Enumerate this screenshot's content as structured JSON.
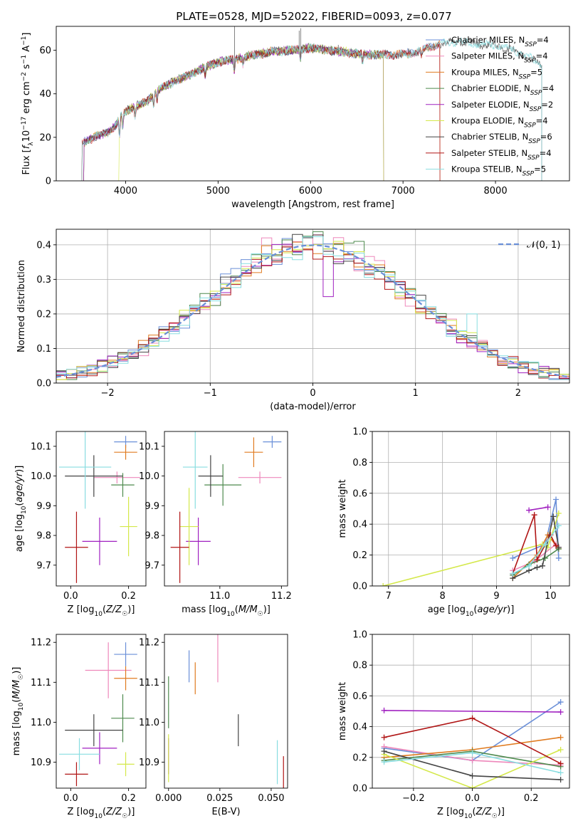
{
  "figure": {
    "title": "PLATE=0528, MJD=52022, FIBERID=0093, z=0.077"
  },
  "colors": {
    "Chabrier MILES": "#6a8fd8",
    "Salpeter MILES": "#ee88bb",
    "Kroupa MILES": "#e07b20",
    "Chabrier ELODIE": "#4e8a4e",
    "Salpeter ELODIE": "#a020c0",
    "Kroupa ELODIE": "#d4e84a",
    "Chabrier STELIB": "#444444",
    "Salpeter STELIB": "#b01515",
    "Kroupa STELIB": "#88dde0"
  },
  "chart_data": [
    {
      "id": "spectrum",
      "type": "line",
      "title": "PLATE=0528, MJD=52022, FIBERID=0093, z=0.077",
      "xlabel": "wavelength [Angstrom, rest frame]",
      "ylabel": "Flux [f_λ 10^-17 erg cm^-2 s^-1 A^-1]",
      "xlim": [
        3250,
        8800
      ],
      "ylim": [
        0,
        71
      ],
      "xticks": [
        4000,
        5000,
        6000,
        7000,
        8000
      ],
      "yticks": [
        0,
        20,
        40,
        60
      ],
      "legend_position": "top-right",
      "series": [
        {
          "name": "Chabrier MILES, N_SSP=4"
        },
        {
          "name": "Salpeter MILES, N_SSP=4"
        },
        {
          "name": "Kroupa MILES, N_SSP=5"
        },
        {
          "name": "Chabrier ELODIE, N_SSP=4"
        },
        {
          "name": "Salpeter ELODIE, N_SSP=2"
        },
        {
          "name": "Kroupa ELODIE, N_SSP=4"
        },
        {
          "name": "Chabrier STELIB, N_SSP=6"
        },
        {
          "name": "Salpeter STELIB, N_SSP=4"
        },
        {
          "name": "Kroupa STELIB, N_SSP=5"
        }
      ],
      "continuum": [
        [
          3520,
          17
        ],
        [
          3650,
          20
        ],
        [
          3800,
          22
        ],
        [
          3900,
          26
        ],
        [
          3960,
          31
        ],
        [
          4050,
          33
        ],
        [
          4150,
          35
        ],
        [
          4250,
          37
        ],
        [
          4350,
          42
        ],
        [
          4500,
          45
        ],
        [
          4700,
          49
        ],
        [
          4900,
          53
        ],
        [
          5050,
          55
        ],
        [
          5200,
          56
        ],
        [
          5400,
          58
        ],
        [
          5600,
          59.5
        ],
        [
          5800,
          60
        ],
        [
          6000,
          61
        ],
        [
          6200,
          60
        ],
        [
          6400,
          59
        ],
        [
          6600,
          58
        ],
        [
          6800,
          58
        ],
        [
          7000,
          58
        ],
        [
          7200,
          60
        ],
        [
          7400,
          63
        ],
        [
          7600,
          64
        ],
        [
          7800,
          63
        ],
        [
          8000,
          62
        ],
        [
          8200,
          60
        ],
        [
          8400,
          56
        ],
        [
          8500,
          53
        ]
      ],
      "ranges": {
        "Chabrier MILES": [
          3540,
          7400
        ],
        "Salpeter MILES": [
          3540,
          7400
        ],
        "Kroupa MILES": [
          3540,
          7400
        ],
        "Chabrier ELODIE": [
          3540,
          6790
        ],
        "Salpeter ELODIE": [
          3540,
          6790
        ],
        "Kroupa ELODIE": [
          3920,
          6790
        ],
        "Chabrier STELIB": [
          3520,
          8500
        ],
        "Salpeter STELIB": [
          3520,
          7400
        ],
        "Kroupa STELIB": [
          3520,
          8500
        ]
      },
      "absorption": [
        [
          3934,
          8
        ],
        [
          3969,
          7
        ],
        [
          4102,
          4
        ],
        [
          4304,
          6
        ],
        [
          4341,
          4
        ],
        [
          4861,
          4
        ],
        [
          5175,
          6
        ],
        [
          5270,
          3
        ],
        [
          5890,
          5
        ],
        [
          6563,
          4
        ],
        [
          7200,
          3
        ]
      ],
      "emission": [
        [
          5178,
          23
        ],
        [
          5877,
          9
        ],
        [
          5893,
          14
        ],
        [
          6300,
          3
        ],
        [
          8150,
          6
        ]
      ]
    },
    {
      "id": "residuals",
      "type": "histogram",
      "xlabel": "(data-model)/error",
      "ylabel": "Normed distribution",
      "xlim": [
        -2.5,
        2.5
      ],
      "ylim": [
        0,
        0.445
      ],
      "xticks": [
        -2,
        -1,
        0,
        1,
        2
      ],
      "yticks": [
        0.0,
        0.1,
        0.2,
        0.3,
        0.4
      ],
      "legend_position": "top-right",
      "reference": {
        "name": "𝒩(0, 1)",
        "mean": 0,
        "sigma": 1
      },
      "bin_width": 0.1,
      "bin_start": -2.5,
      "bumps": [
        {
          "series": "Salpeter MILES",
          "x": -0.45,
          "y": 0.42
        },
        {
          "series": "Chabrier ELODIE",
          "x": -0.05,
          "y": 0.425
        },
        {
          "series": "Chabrier ELODIE",
          "x": 0.45,
          "y": 0.41
        },
        {
          "series": "Kroupa STELIB",
          "x": 1.55,
          "y": 0.2
        },
        {
          "series": "Salpeter ELODIE",
          "x": 0.15,
          "y": 0.25
        }
      ]
    },
    {
      "id": "z-vs-age",
      "type": "scatter",
      "xlabel": "Z [log10(Z/Z☉)]",
      "ylabel": "age [log10(age/yr)]",
      "xlim": [
        -0.05,
        0.26
      ],
      "ylim": [
        9.63,
        10.15
      ],
      "xticks": [
        0.0,
        0.2
      ],
      "yticks": [
        9.7,
        9.8,
        9.9,
        10.0,
        10.1
      ],
      "points": [
        {
          "series": "Chabrier MILES",
          "x": 0.19,
          "y": 10.115,
          "xerr": 0.04,
          "yerr": 0.02
        },
        {
          "series": "Salpeter MILES",
          "x": 0.16,
          "y": 9.995,
          "xerr": 0.08,
          "yerr": 0.02
        },
        {
          "series": "Kroupa MILES",
          "x": 0.19,
          "y": 10.08,
          "xerr": 0.04,
          "yerr": 0.025
        },
        {
          "series": "Chabrier ELODIE",
          "x": 0.18,
          "y": 9.97,
          "xerr": 0.04,
          "yerr": 0.04
        },
        {
          "series": "Salpeter ELODIE",
          "x": 0.1,
          "y": 9.78,
          "xerr": 0.06,
          "yerr": 0.08
        },
        {
          "series": "Kroupa ELODIE",
          "x": 0.2,
          "y": 9.83,
          "xerr": 0.03,
          "yerr": 0.1
        },
        {
          "series": "Chabrier STELIB",
          "x": 0.08,
          "y": 10.0,
          "xerr": 0.1,
          "yerr": 0.07
        },
        {
          "series": "Salpeter STELIB",
          "x": 0.02,
          "y": 9.76,
          "xerr": 0.04,
          "yerr": 0.12
        },
        {
          "series": "Kroupa STELIB",
          "x": 0.05,
          "y": 10.03,
          "xerr": 0.09,
          "yerr": 0.14
        }
      ]
    },
    {
      "id": "mass-vs-age",
      "type": "scatter",
      "xlabel": "mass [log10(M/M☉)]",
      "ylabel": "",
      "xlim": [
        10.82,
        11.22
      ],
      "ylim": [
        9.63,
        10.15
      ],
      "xticks": [
        10.8,
        11.0,
        11.2
      ],
      "yticks": [
        9.7,
        9.8,
        9.9,
        10.0,
        10.1
      ],
      "points": [
        {
          "series": "Chabrier MILES",
          "x": 11.17,
          "y": 10.115,
          "xerr": 0.03,
          "yerr": 0.02
        },
        {
          "series": "Salpeter MILES",
          "x": 11.13,
          "y": 9.995,
          "xerr": 0.07,
          "yerr": 0.02
        },
        {
          "series": "Kroupa MILES",
          "x": 11.11,
          "y": 10.08,
          "xerr": 0.03,
          "yerr": 0.05
        },
        {
          "series": "Chabrier ELODIE",
          "x": 11.01,
          "y": 9.97,
          "xerr": 0.06,
          "yerr": 0.07
        },
        {
          "series": "Salpeter ELODIE",
          "x": 10.93,
          "y": 9.78,
          "xerr": 0.04,
          "yerr": 0.08
        },
        {
          "series": "Kroupa ELODIE",
          "x": 10.9,
          "y": 9.83,
          "xerr": 0.03,
          "yerr": 0.13
        },
        {
          "series": "Chabrier STELIB",
          "x": 10.97,
          "y": 10.0,
          "xerr": 0.04,
          "yerr": 0.07
        },
        {
          "series": "Salpeter STELIB",
          "x": 10.87,
          "y": 9.76,
          "xerr": 0.03,
          "yerr": 0.12
        },
        {
          "series": "Kroupa STELIB",
          "x": 10.92,
          "y": 10.03,
          "xerr": 0.04,
          "yerr": 0.14
        }
      ]
    },
    {
      "id": "age-vs-mass-weight",
      "type": "line",
      "xlabel": "age [log10(age/yr)]",
      "ylabel": "mass weight",
      "xlim": [
        6.7,
        10.35
      ],
      "ylim": [
        0,
        1.0
      ],
      "xticks": [
        7,
        8,
        9,
        10
      ],
      "yticks": [
        0.0,
        0.2,
        0.4,
        0.6,
        0.8,
        1.0
      ],
      "grid": true,
      "series": [
        {
          "series": "Chabrier MILES",
          "x": [
            9.3,
            9.9,
            10.1,
            10.15
          ],
          "y": [
            0.18,
            0.27,
            0.56,
            0.18
          ]
        },
        {
          "series": "Salpeter MILES",
          "x": [
            9.3,
            9.7,
            10.1,
            10.15
          ],
          "y": [
            0.1,
            0.16,
            0.27,
            0.25
          ]
        },
        {
          "series": "Kroupa MILES",
          "x": [
            9.3,
            9.75,
            9.95,
            10.15
          ],
          "y": [
            0.05,
            0.2,
            0.33,
            0.24
          ]
        },
        {
          "series": "Chabrier ELODIE",
          "x": [
            9.3,
            9.6,
            9.9,
            10.15
          ],
          "y": [
            0.07,
            0.14,
            0.18,
            0.24
          ]
        },
        {
          "series": "Salpeter ELODIE",
          "x": [
            9.6,
            9.95
          ],
          "y": [
            0.49,
            0.51
          ]
        },
        {
          "series": "Kroupa ELODIE",
          "x": [
            6.9,
            9.85,
            9.95,
            10.15
          ],
          "y": [
            0.0,
            0.27,
            0.25,
            0.47
          ]
        },
        {
          "series": "Chabrier STELIB",
          "x": [
            9.3,
            9.6,
            9.75,
            9.85,
            10.05,
            10.15
          ],
          "y": [
            0.05,
            0.1,
            0.12,
            0.13,
            0.45,
            0.25
          ]
        },
        {
          "series": "Salpeter STELIB",
          "x": [
            9.3,
            9.7,
            9.75,
            10.0,
            10.1
          ],
          "y": [
            0.08,
            0.46,
            0.17,
            0.33,
            0.26
          ]
        },
        {
          "series": "Kroupa STELIB",
          "x": [
            9.3,
            9.6,
            9.9,
            10.15
          ],
          "y": [
            0.08,
            0.13,
            0.27,
            0.39
          ]
        }
      ]
    },
    {
      "id": "z-vs-mass",
      "type": "scatter",
      "xlabel": "Z [log10(Z/Z☉)]",
      "ylabel": "mass [log10(M/M☉)]",
      "xlim": [
        -0.05,
        0.26
      ],
      "ylim": [
        10.835,
        11.22
      ],
      "xticks": [
        0.0,
        0.2
      ],
      "yticks": [
        10.9,
        11.0,
        11.1,
        11.2
      ],
      "points": [
        {
          "series": "Chabrier MILES",
          "x": 0.19,
          "y": 11.17,
          "xerr": 0.04,
          "yerr": 0.03
        },
        {
          "series": "Salpeter MILES",
          "x": 0.13,
          "y": 11.13,
          "xerr": 0.08,
          "yerr": 0.07
        },
        {
          "series": "Kroupa MILES",
          "x": 0.19,
          "y": 11.11,
          "xerr": 0.04,
          "yerr": 0.03
        },
        {
          "series": "Chabrier ELODIE",
          "x": 0.18,
          "y": 11.01,
          "xerr": 0.04,
          "yerr": 0.06
        },
        {
          "series": "Salpeter ELODIE",
          "x": 0.1,
          "y": 10.935,
          "xerr": 0.06,
          "yerr": 0.04
        },
        {
          "series": "Kroupa ELODIE",
          "x": 0.19,
          "y": 10.895,
          "xerr": 0.03,
          "yerr": 0.03
        },
        {
          "series": "Chabrier STELIB",
          "x": 0.08,
          "y": 10.98,
          "xerr": 0.1,
          "yerr": 0.04
        },
        {
          "series": "Salpeter STELIB",
          "x": 0.02,
          "y": 10.87,
          "xerr": 0.04,
          "yerr": 0.03
        },
        {
          "series": "Kroupa STELIB",
          "x": 0.03,
          "y": 10.92,
          "xerr": 0.07,
          "yerr": 0.04
        }
      ]
    },
    {
      "id": "ebv-vs-mass",
      "type": "scatter",
      "xlabel": "E(B-V)",
      "ylabel": "",
      "xlim": [
        -0.002,
        0.058
      ],
      "ylim": [
        10.835,
        11.22
      ],
      "xticks": [
        0.0,
        0.025,
        0.05
      ],
      "yticks": [
        10.9,
        11.0,
        11.1,
        11.2
      ],
      "points": [
        {
          "series": "Chabrier MILES",
          "x": 0.01,
          "y": 11.14,
          "xerr": 0,
          "yerr": 0.04
        },
        {
          "series": "Salpeter MILES",
          "x": 0.024,
          "y": 11.16,
          "xerr": 0,
          "yerr": 0.06
        },
        {
          "series": "Kroupa MILES",
          "x": 0.013,
          "y": 11.11,
          "xerr": 0,
          "yerr": 0.04
        },
        {
          "series": "Chabrier ELODIE",
          "x": 0.0,
          "y": 11.05,
          "xerr": 0,
          "yerr": 0.065
        },
        {
          "series": "Salpeter ELODIE",
          "x": 0.0,
          "y": 10.915,
          "xerr": 0,
          "yerr": 0.045
        },
        {
          "series": "Kroupa ELODIE",
          "x": 0.0,
          "y": 10.91,
          "xerr": 0,
          "yerr": 0.06
        },
        {
          "series": "Chabrier STELIB",
          "x": 0.034,
          "y": 10.98,
          "xerr": 0,
          "yerr": 0.04
        },
        {
          "series": "Salpeter STELIB",
          "x": 0.056,
          "y": 10.87,
          "xerr": 0,
          "yerr": 0.045
        },
        {
          "series": "Kroupa STELIB",
          "x": 0.053,
          "y": 10.9,
          "xerr": 0,
          "yerr": 0.055
        }
      ]
    },
    {
      "id": "z-vs-mass-weight",
      "type": "line",
      "xlabel": "Z [log10(Z/Z☉)]",
      "ylabel": "mass weight",
      "xlim": [
        -0.34,
        0.33
      ],
      "ylim": [
        0,
        1.0
      ],
      "xticks": [
        -0.2,
        0.0,
        0.2
      ],
      "yticks": [
        0.0,
        0.2,
        0.4,
        0.6,
        0.8,
        1.0
      ],
      "grid": true,
      "series": [
        {
          "series": "Chabrier MILES",
          "x": [
            -0.3,
            0.0,
            0.3
          ],
          "y": [
            0.26,
            0.18,
            0.56
          ]
        },
        {
          "series": "Salpeter MILES",
          "x": [
            -0.3,
            0.0,
            0.3
          ],
          "y": [
            0.27,
            0.18,
            0.15
          ]
        },
        {
          "series": "Kroupa MILES",
          "x": [
            -0.3,
            0.0,
            0.3
          ],
          "y": [
            0.2,
            0.25,
            0.33
          ]
        },
        {
          "series": "Chabrier ELODIE",
          "x": [
            -0.3,
            0.0,
            0.3
          ],
          "y": [
            0.18,
            0.24,
            0.14
          ]
        },
        {
          "series": "Salpeter ELODIE",
          "x": [
            -0.3,
            0.3
          ],
          "y": [
            0.505,
            0.495
          ]
        },
        {
          "series": "Kroupa ELODIE",
          "x": [
            -0.3,
            0.0,
            0.3
          ],
          "y": [
            0.22,
            0.0,
            0.25
          ]
        },
        {
          "series": "Chabrier STELIB",
          "x": [
            -0.3,
            0.0,
            0.3
          ],
          "y": [
            0.24,
            0.08,
            0.055
          ]
        },
        {
          "series": "Salpeter STELIB",
          "x": [
            -0.3,
            0.0,
            0.3
          ],
          "y": [
            0.33,
            0.455,
            0.16
          ]
        },
        {
          "series": "Kroupa STELIB",
          "x": [
            -0.3,
            0.0,
            0.3
          ],
          "y": [
            0.17,
            0.23,
            0.1
          ]
        }
      ]
    }
  ]
}
